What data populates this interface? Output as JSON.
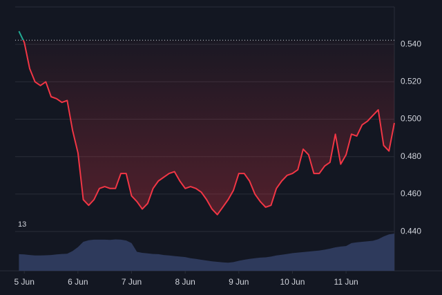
{
  "chart_data": {
    "type": "baseline",
    "x": [
      4.9,
      5.0,
      5.1,
      5.2,
      5.3,
      5.4,
      5.5,
      5.6,
      5.7,
      5.8,
      5.9,
      6.0,
      6.1,
      6.2,
      6.3,
      6.4,
      6.5,
      6.6,
      6.7,
      6.8,
      6.9,
      7.0,
      7.1,
      7.2,
      7.3,
      7.4,
      7.5,
      7.6,
      7.7,
      7.8,
      7.9,
      8.0,
      8.1,
      8.2,
      8.3,
      8.4,
      8.5,
      8.6,
      8.7,
      8.8,
      8.9,
      9.0,
      9.1,
      9.2,
      9.3,
      9.4,
      9.5,
      9.6,
      9.7,
      9.8,
      9.9,
      10.0,
      10.1,
      10.2,
      10.3,
      10.4,
      10.5,
      10.6,
      10.7,
      10.8,
      10.9,
      11.0,
      11.1,
      11.2,
      11.3,
      11.4,
      11.5,
      11.6,
      11.7,
      11.8,
      11.9
    ],
    "series": [
      {
        "color_up": "#22ab94",
        "color_down": "#f23645",
        "values": [
          0.547,
          0.541,
          0.527,
          0.52,
          0.518,
          0.52,
          0.512,
          0.511,
          0.509,
          0.51,
          0.494,
          0.482,
          0.457,
          0.454,
          0.457,
          0.463,
          0.464,
          0.463,
          0.463,
          0.471,
          0.471,
          0.459,
          0.456,
          0.452,
          0.455,
          0.463,
          0.467,
          0.469,
          0.471,
          0.472,
          0.467,
          0.463,
          0.464,
          0.463,
          0.461,
          0.457,
          0.452,
          0.449,
          0.453,
          0.457,
          0.462,
          0.471,
          0.471,
          0.467,
          0.46,
          0.456,
          0.453,
          0.454,
          0.463,
          0.467,
          0.47,
          0.471,
          0.473,
          0.484,
          0.481,
          0.471,
          0.471,
          0.475,
          0.477,
          0.492,
          0.476,
          0.481,
          0.492,
          0.491,
          0.497,
          0.499,
          0.502,
          0.505,
          0.486,
          0.483,
          0.498
        ]
      },
      {
        "color": "#2e3a5c",
        "axis": "y2",
        "values": [
          6.3,
          6.2,
          6.0,
          5.8,
          5.8,
          5.9,
          6.0,
          6.2,
          6.4,
          6.5,
          7.5,
          9.0,
          11.0,
          11.6,
          11.8,
          11.8,
          11.8,
          11.7,
          11.9,
          11.8,
          11.5,
          10.5,
          7.2,
          6.8,
          6.6,
          6.4,
          6.3,
          6.0,
          5.8,
          5.6,
          5.4,
          5.2,
          4.8,
          4.5,
          4.2,
          3.9,
          3.6,
          3.4,
          3.2,
          3.1,
          3.3,
          3.8,
          4.2,
          4.5,
          4.8,
          5.0,
          5.1,
          5.4,
          5.8,
          6.1,
          6.4,
          6.7,
          6.9,
          7.1,
          7.3,
          7.5,
          7.7,
          8.0,
          8.4,
          8.9,
          9.2,
          9.4,
          10.5,
          10.8,
          11.0,
          11.2,
          11.4,
          12.0,
          13.0,
          13.8,
          14.1
        ]
      }
    ],
    "baseline": 0.5422,
    "annotation": "13",
    "xlim": [
      4.83,
      11.9
    ],
    "xticks": [
      {
        "value": 5,
        "label": "5 Jun"
      },
      {
        "value": 6,
        "label": "6 Jun"
      },
      {
        "value": 7,
        "label": "7 Jun"
      },
      {
        "value": 8,
        "label": "8 Jun"
      },
      {
        "value": 9,
        "label": "9 Jun"
      },
      {
        "value": 10,
        "label": "10 Jun"
      },
      {
        "value": 11,
        "label": "11 Jun"
      }
    ],
    "ylim": [
      0.419,
      0.56
    ],
    "yticks": [
      {
        "value": 0.44,
        "label": "0.440"
      },
      {
        "value": 0.46,
        "label": "0.460"
      },
      {
        "value": 0.48,
        "label": "0.480"
      },
      {
        "value": 0.5,
        "label": "0.500"
      },
      {
        "value": 0.52,
        "label": "0.520"
      },
      {
        "value": 0.54,
        "label": "0.540"
      }
    ],
    "y2lim": [
      0,
      100
    ],
    "grid": true
  }
}
